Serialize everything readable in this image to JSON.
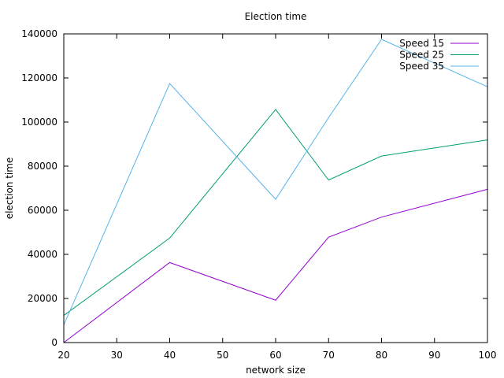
{
  "chart_data": {
    "type": "line",
    "title": "Election time",
    "xlabel": "network size",
    "ylabel": "election time",
    "xlim": [
      20,
      100
    ],
    "ylim": [
      0,
      140000
    ],
    "xticks": [
      20,
      30,
      40,
      50,
      60,
      70,
      80,
      90,
      100
    ],
    "yticks": [
      0,
      20000,
      40000,
      60000,
      80000,
      100000,
      120000,
      140000
    ],
    "grid": false,
    "legend_position": "top-right",
    "x": [
      20,
      40,
      60,
      70,
      80,
      100
    ],
    "series": [
      {
        "name": "Speed 15",
        "color": "#9400d3",
        "values": [
          0,
          36300,
          19200,
          47800,
          56900,
          69500
        ]
      },
      {
        "name": "Speed 25",
        "color": "#009e73",
        "values": [
          12300,
          47400,
          105700,
          73700,
          84600,
          91900
        ]
      },
      {
        "name": "Speed 35",
        "color": "#56b4e9",
        "values": [
          8000,
          117500,
          65000,
          102000,
          137500,
          116000
        ]
      }
    ]
  }
}
